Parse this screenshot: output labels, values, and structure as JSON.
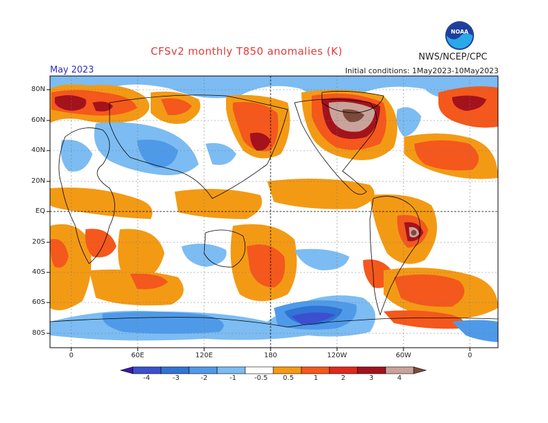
{
  "header": {
    "title": "CFSv2 monthly T850 anomalies (K)",
    "organization": "NWS/NCEP/CPC",
    "month": "May 2023",
    "initial_conditions": "Initial conditions: 1May2023-10May2023",
    "logo_text": "NOAA"
  },
  "map": {
    "lat_labels": [
      "80N",
      "60N",
      "40N",
      "20N",
      "EQ",
      "20S",
      "40S",
      "60S",
      "80S"
    ],
    "lon_labels": [
      "0",
      "60E",
      "120E",
      "180",
      "120W",
      "60W",
      "0"
    ]
  },
  "colorbar": {
    "labels": [
      "-4",
      "-3",
      "-2",
      "-1",
      "-0.5",
      "0.5",
      "1",
      "2",
      "3",
      "4"
    ],
    "colors": [
      "#3a1aa8",
      "#3c4fcf",
      "#2f74d6",
      "#4f9ae8",
      "#7cbcf2",
      "#ffffff",
      "#f39a15",
      "#f4581c",
      "#e0281c",
      "#a4121c",
      "#c9a39a",
      "#7b4a3c"
    ]
  }
}
